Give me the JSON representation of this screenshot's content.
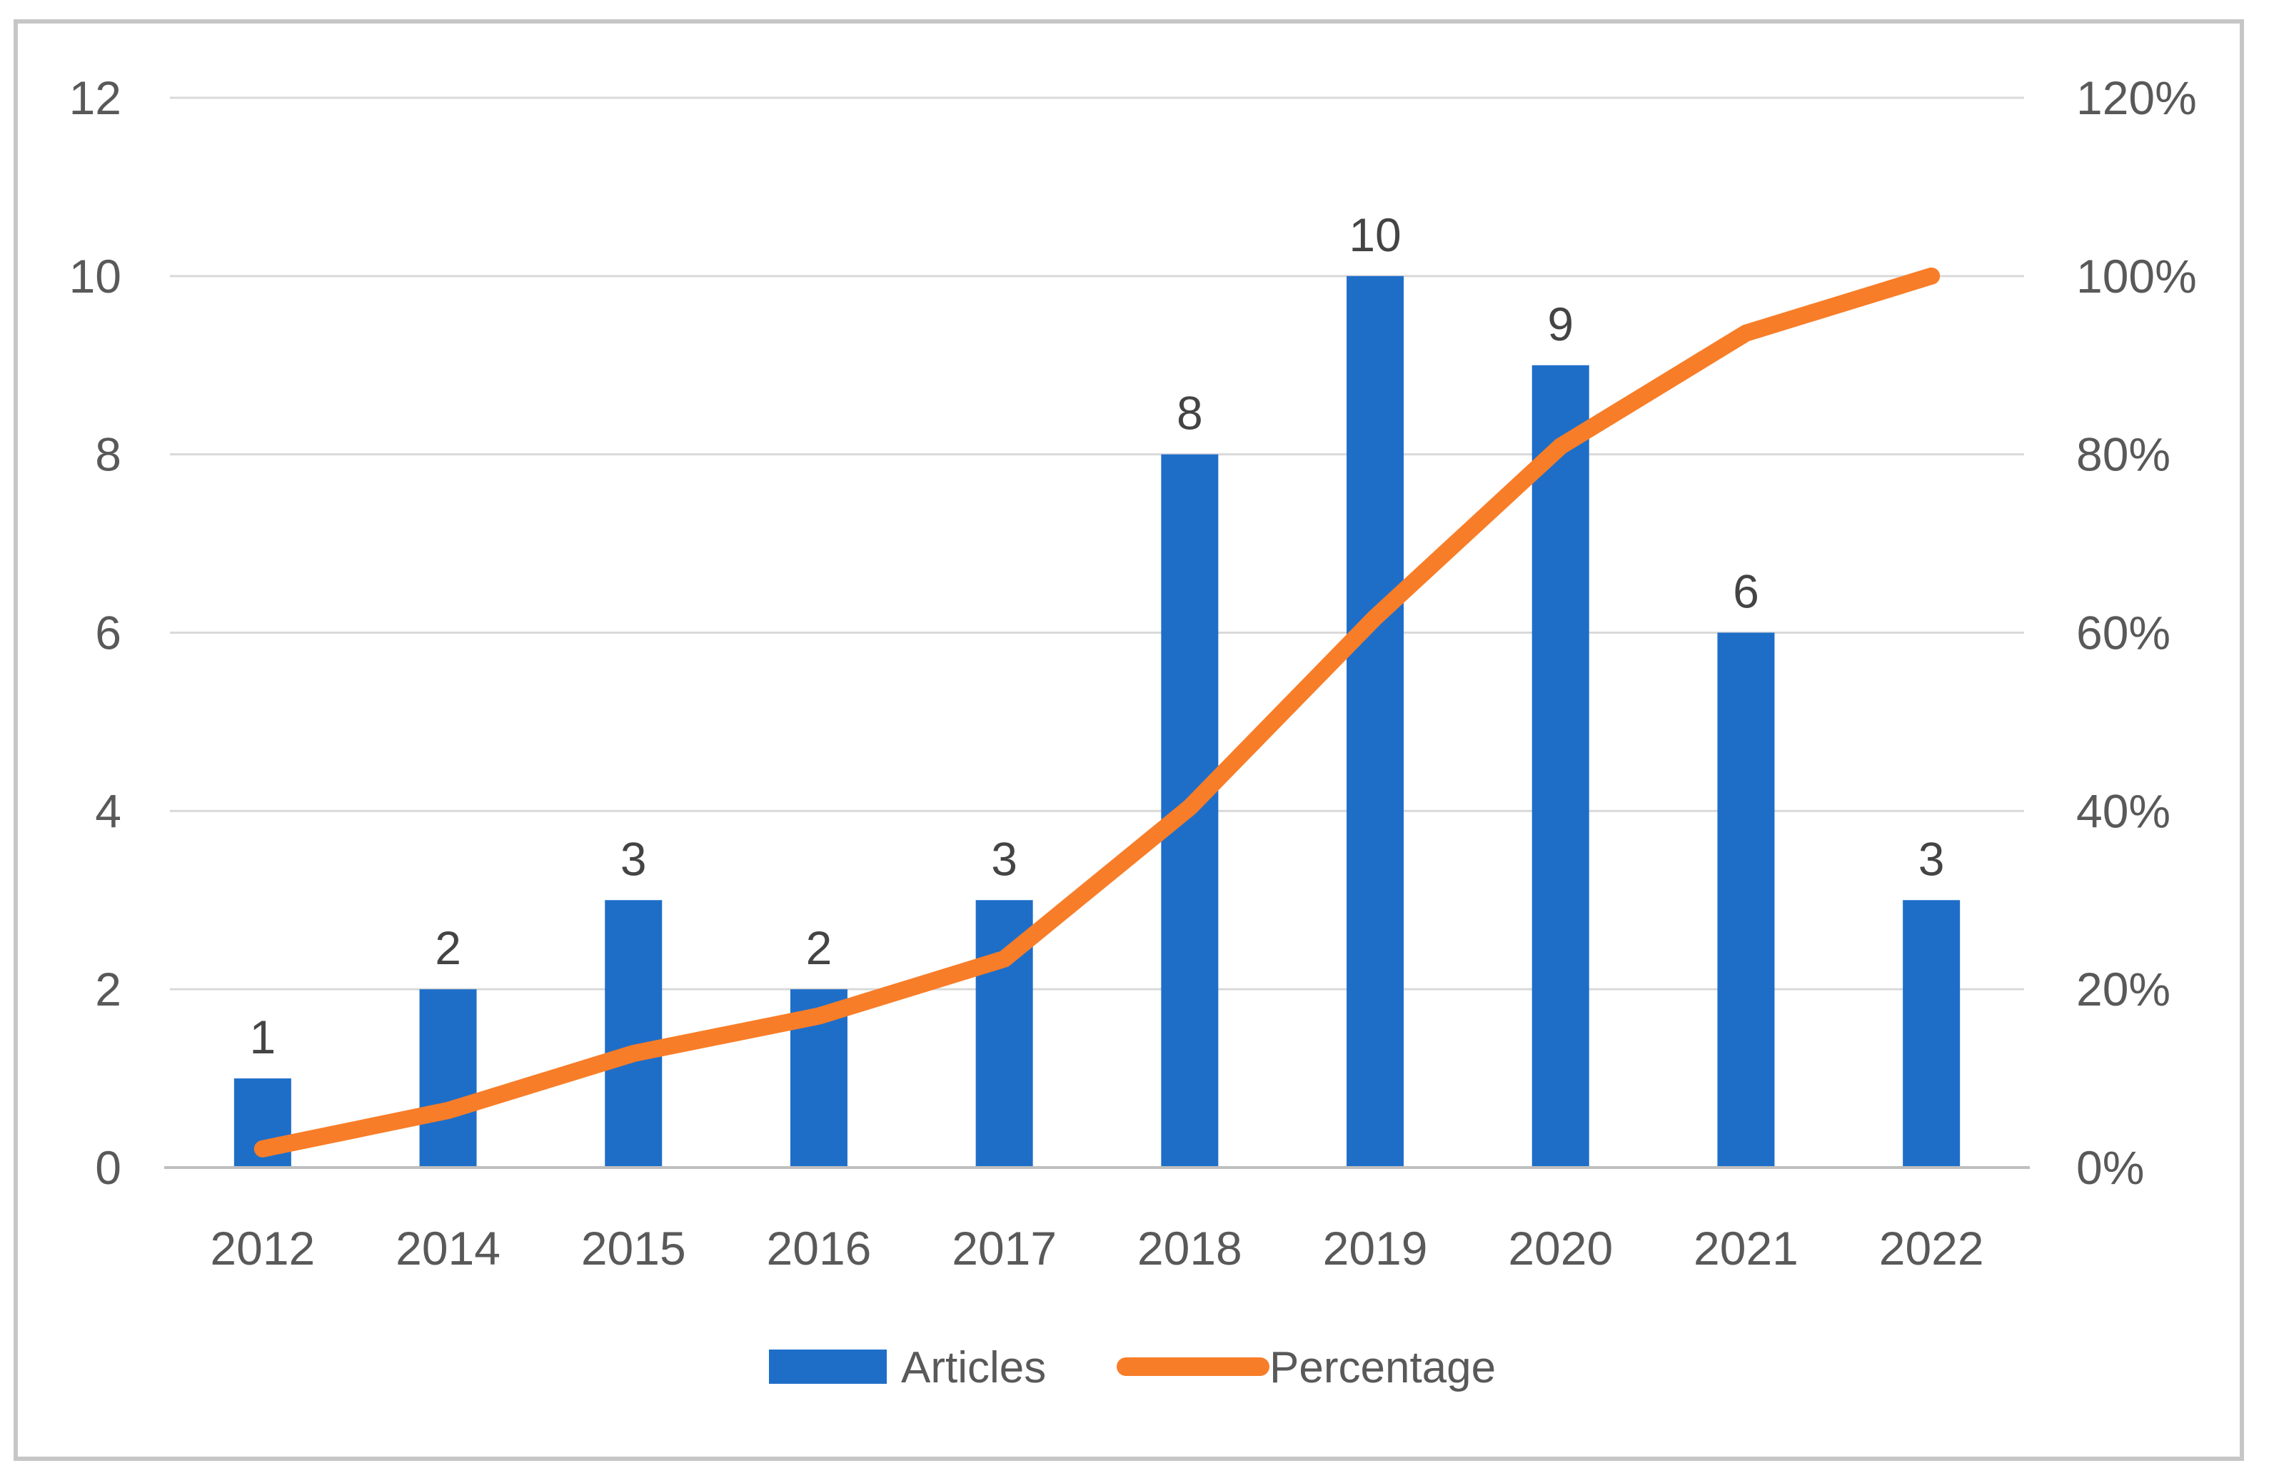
{
  "figure": {
    "description": "Combo chart of articles per year with cumulative percentage line",
    "frame_border_color": "#c6c6c6",
    "background_color": "#ffffff"
  },
  "chart_data": {
    "type": "bar+line",
    "categories": [
      "2012",
      "2014",
      "2015",
      "2016",
      "2017",
      "2018",
      "2019",
      "2020",
      "2021",
      "2022"
    ],
    "series": [
      {
        "name": "Articles",
        "type": "bar",
        "axis": "left",
        "values": [
          1,
          2,
          3,
          2,
          3,
          8,
          10,
          9,
          6,
          3
        ],
        "data_labels": [
          "1",
          "2",
          "3",
          "2",
          "3",
          "8",
          "10",
          "9",
          "6",
          "3"
        ],
        "color": "#1e6ec8"
      },
      {
        "name": "Percentage",
        "type": "line",
        "axis": "right",
        "values_percent": [
          2.1,
          6.4,
          12.8,
          17.0,
          23.4,
          40.4,
          61.7,
          80.9,
          93.6,
          100.0
        ],
        "color": "#f87d28"
      }
    ],
    "left_axis": {
      "min": 0,
      "max": 12,
      "tick_labels": [
        "0",
        "2",
        "4",
        "6",
        "8",
        "10",
        "12"
      ]
    },
    "right_axis": {
      "min": 0,
      "max": 120,
      "tick_labels": [
        "0%",
        "20%",
        "40%",
        "60%",
        "80%",
        "100%",
        "120%"
      ]
    },
    "grid": true,
    "gridline_color": "#d9d9d9",
    "axis_line_color": "#bfbfbf",
    "axis_text_color": "#595959",
    "data_label_color": "#444444",
    "legend": {
      "position": "bottom",
      "items": [
        {
          "label": "Articles",
          "swatch": "bar-swatch",
          "color": "#1e6ec8"
        },
        {
          "label": "Percentage",
          "swatch": "line-swatch",
          "color": "#f87d28"
        }
      ]
    },
    "title": "",
    "xlabel": "",
    "ylabel": ""
  }
}
